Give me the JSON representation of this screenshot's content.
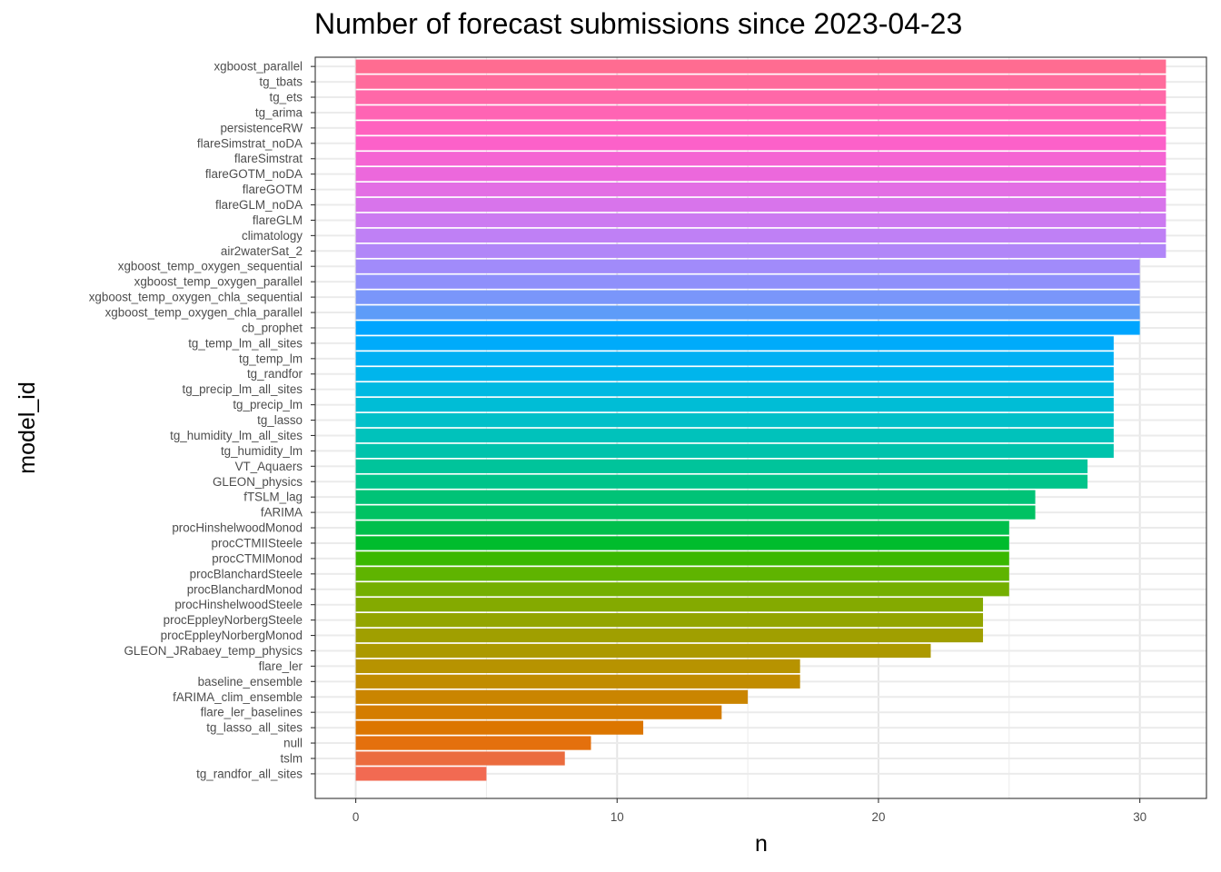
{
  "chart_data": {
    "type": "bar",
    "orientation": "horizontal",
    "title": "Number of forecast submissions since 2023-04-23",
    "xlabel": "n",
    "ylabel": "model_id",
    "xlim": [
      -1.55,
      32.55
    ],
    "xticks": [
      0,
      10,
      20,
      30
    ],
    "grid": true,
    "legend": "none",
    "categories": [
      "xgboost_parallel",
      "tg_tbats",
      "tg_ets",
      "tg_arima",
      "persistenceRW",
      "flareSimstrat_noDA",
      "flareSimstrat",
      "flareGOTM_noDA",
      "flareGOTM",
      "flareGLM_noDA",
      "flareGLM",
      "climatology",
      "air2waterSat_2",
      "xgboost_temp_oxygen_sequential",
      "xgboost_temp_oxygen_parallel",
      "xgboost_temp_oxygen_chla_sequential",
      "xgboost_temp_oxygen_chla_parallel",
      "cb_prophet",
      "tg_temp_lm_all_sites",
      "tg_temp_lm",
      "tg_randfor",
      "tg_precip_lm_all_sites",
      "tg_precip_lm",
      "tg_lasso",
      "tg_humidity_lm_all_sites",
      "tg_humidity_lm",
      "VT_Aquaers",
      "GLEON_physics",
      "fTSLM_lag",
      "fARIMA",
      "procHinshelwoodMonod",
      "procCTMIISteele",
      "procCTMIMonod",
      "procBlanchardSteele",
      "procBlanchardMonod",
      "procHinshelwoodSteele",
      "procEppleyNorbergSteele",
      "procEppleyNorbergMonod",
      "GLEON_JRabaey_temp_physics",
      "flare_ler",
      "baseline_ensemble",
      "fARIMA_clim_ensemble",
      "flare_ler_baselines",
      "tg_lasso_all_sites",
      "null",
      "tslm",
      "tg_randfor_all_sites"
    ],
    "values": [
      31,
      31,
      31,
      31,
      31,
      31,
      31,
      31,
      31,
      31,
      31,
      31,
      31,
      30,
      30,
      30,
      30,
      30,
      29,
      29,
      29,
      29,
      29,
      29,
      29,
      29,
      28,
      28,
      26,
      26,
      25,
      25,
      25,
      25,
      25,
      24,
      24,
      24,
      22,
      17,
      17,
      15,
      14,
      11,
      9,
      8,
      5
    ],
    "colors": [
      "#FF6C91",
      "#FF6B9C",
      "#FF68A8",
      "#FF64B4",
      "#FF62BF",
      "#FC61C9",
      "#F564D3",
      "#EC68DC",
      "#E36EE4",
      "#D874EB",
      "#CC7AF1",
      "#BF80F5",
      "#B186F8",
      "#A18BFA",
      "#8F90FB",
      "#7A96FA",
      "#5E9CF8",
      "#00A5FF",
      "#00ABFA",
      "#00B0F4",
      "#00B5EC",
      "#00B9E2",
      "#00BDD6",
      "#00C0C9",
      "#00C2BB",
      "#00C3AC",
      "#00C49B",
      "#00C48A",
      "#00C377",
      "#00C263",
      "#00BF4C",
      "#00BC2D",
      "#3AB800",
      "#5FB400",
      "#74AF00",
      "#84AA00",
      "#93A500",
      "#A09F00",
      "#AC9900",
      "#B79300",
      "#C18C00",
      "#CA8500",
      "#D47D00",
      "#DC7600",
      "#E4700D",
      "#EB6C3E",
      "#F26A52"
    ]
  }
}
